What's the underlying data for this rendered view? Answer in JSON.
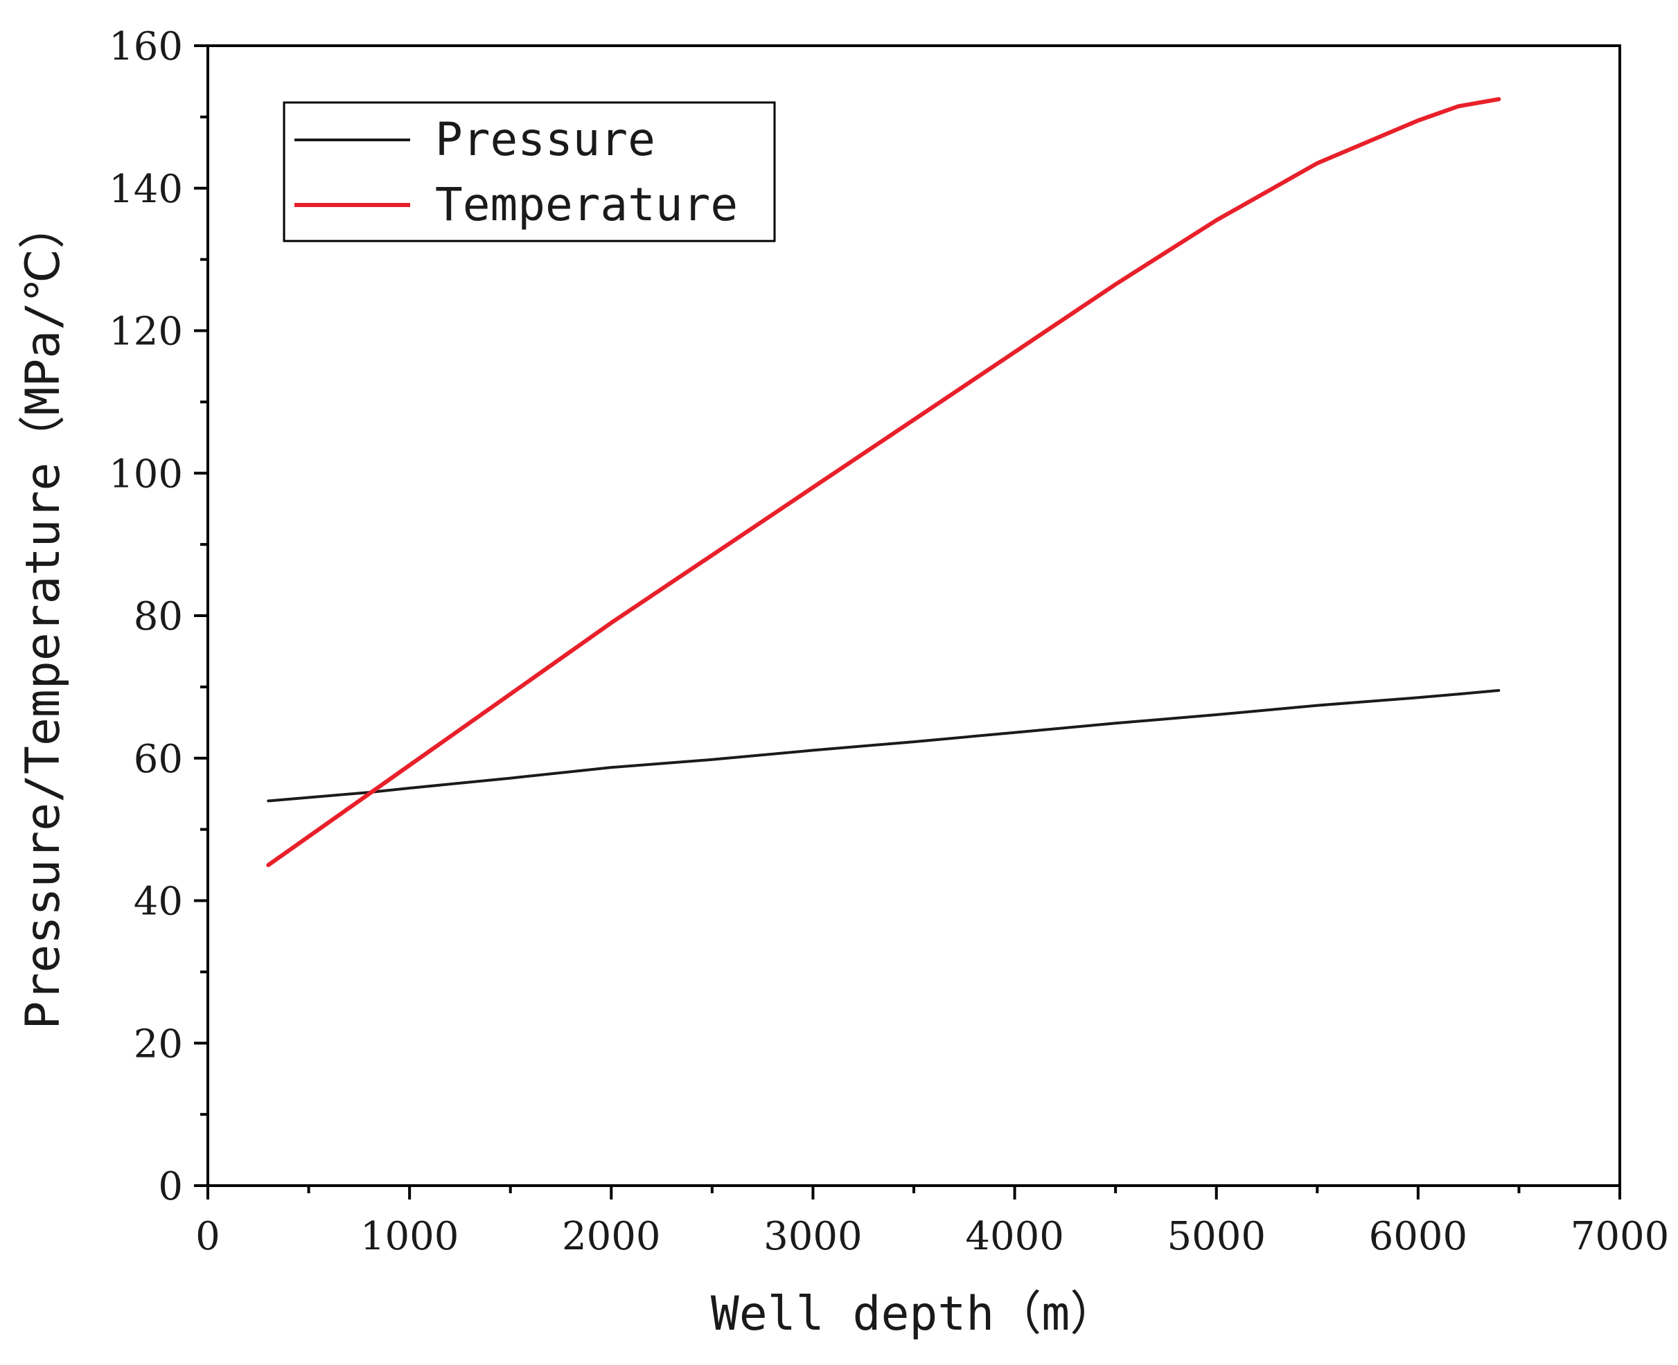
{
  "chart_data": {
    "type": "line",
    "xlabel": "Well depth（m）",
    "ylabel": "Pressure/Temperature（MPa/℃）",
    "xlim": [
      0,
      7000
    ],
    "ylim": [
      0,
      160
    ],
    "xticks": [
      0,
      1000,
      2000,
      3000,
      4000,
      5000,
      6000,
      7000
    ],
    "yticks": [
      0,
      20,
      40,
      60,
      80,
      100,
      120,
      140,
      160
    ],
    "grid": false,
    "legend_position": "top-left",
    "x": [
      300,
      800,
      1000,
      1500,
      2000,
      2500,
      3000,
      3500,
      4000,
      4500,
      5000,
      5500,
      6000,
      6200,
      6400
    ],
    "series": [
      {
        "name": "Pressure",
        "color": "#1a1a1a",
        "values": [
          54.0,
          55.2,
          55.8,
          57.2,
          58.7,
          59.8,
          61.1,
          62.3,
          63.6,
          64.9,
          66.1,
          67.4,
          68.5,
          69.0,
          69.5
        ]
      },
      {
        "name": "Temperature",
        "color": "#e8202a",
        "values": [
          45.0,
          55.0,
          59.0,
          69.0,
          79.0,
          88.5,
          98.0,
          107.5,
          117.0,
          126.5,
          135.5,
          143.5,
          149.5,
          151.5,
          152.5
        ]
      }
    ]
  }
}
